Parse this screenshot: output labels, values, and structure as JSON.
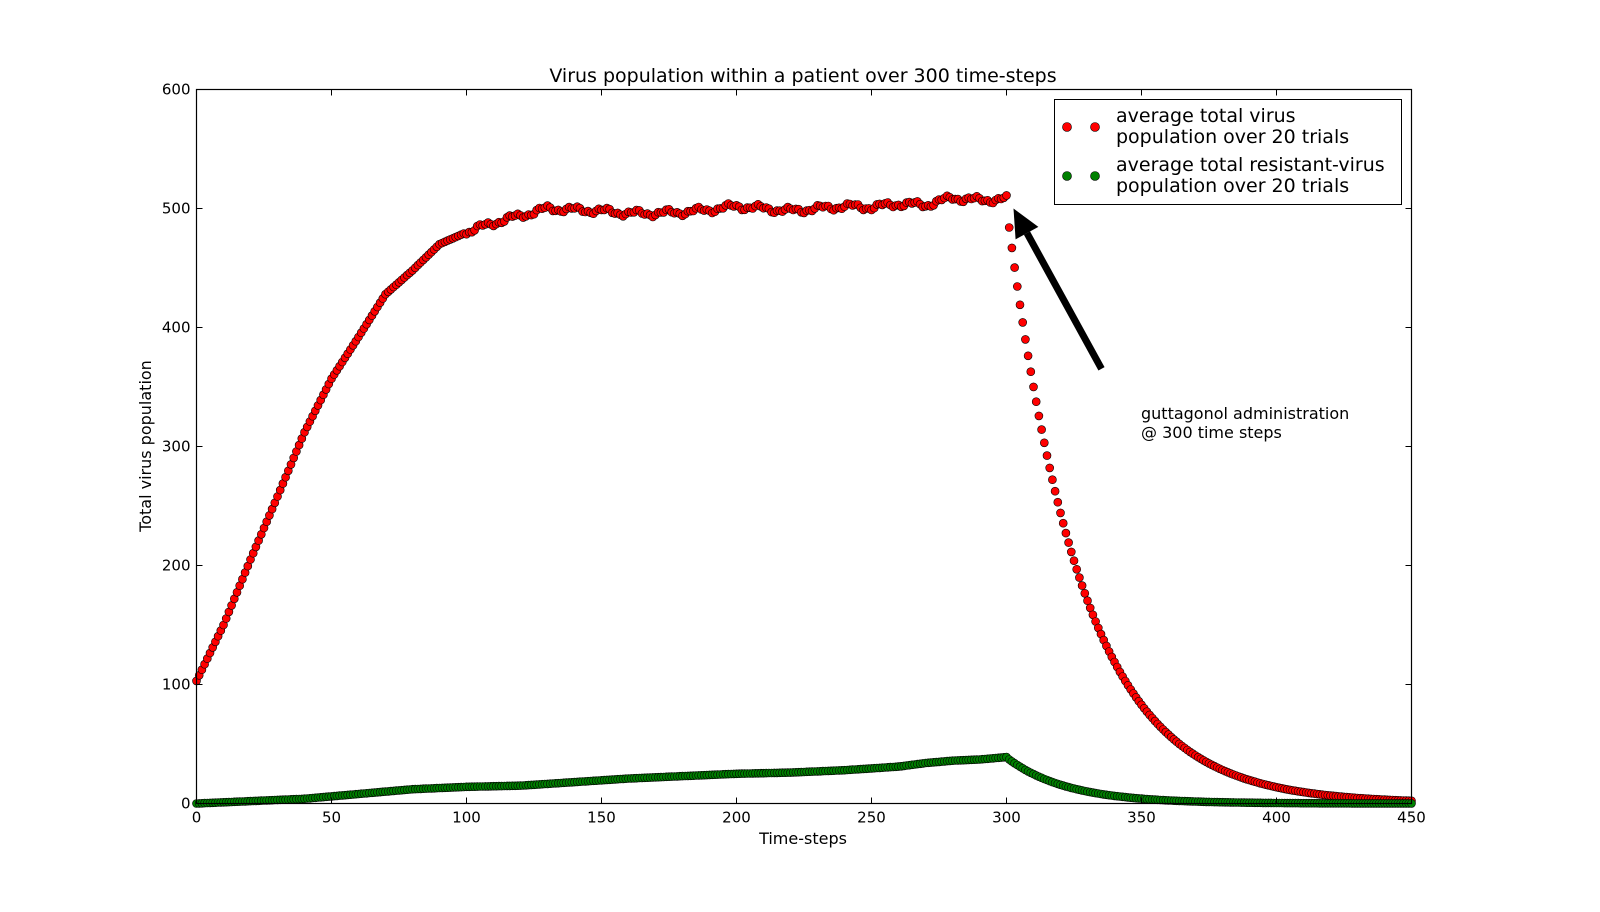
{
  "chart_data": {
    "type": "scatter",
    "title": "Virus population within a patient over 300 time-steps",
    "xlabel": "Time-steps",
    "ylabel": "Total virus population",
    "xlim": [
      0,
      450
    ],
    "ylim": [
      0,
      600
    ],
    "xticks": [
      0,
      50,
      100,
      150,
      200,
      250,
      300,
      350,
      400,
      450
    ],
    "yticks": [
      0,
      100,
      200,
      300,
      400,
      500,
      600
    ],
    "grid": false,
    "legend_placement": "top-right",
    "series": [
      {
        "name": "average total virus\npopulation over 20 trials",
        "color": "#ff0000",
        "anchors": [
          [
            0,
            103
          ],
          [
            10,
            150
          ],
          [
            20,
            205
          ],
          [
            30,
            258
          ],
          [
            40,
            312
          ],
          [
            50,
            357
          ],
          [
            60,
            392
          ],
          [
            70,
            428
          ],
          [
            80,
            448
          ],
          [
            90,
            470
          ],
          [
            100,
            480
          ],
          [
            110,
            488
          ],
          [
            120,
            494
          ],
          [
            130,
            500
          ],
          [
            140,
            499
          ],
          [
            150,
            498
          ],
          [
            160,
            496
          ],
          [
            170,
            496
          ],
          [
            180,
            497
          ],
          [
            190,
            499
          ],
          [
            200,
            502
          ],
          [
            210,
            500
          ],
          [
            220,
            498
          ],
          [
            230,
            500
          ],
          [
            240,
            502
          ],
          [
            250,
            501
          ],
          [
            260,
            504
          ],
          [
            270,
            503
          ],
          [
            280,
            509
          ],
          [
            290,
            507
          ],
          [
            300,
            508
          ]
        ],
        "decay": {
          "start_x": 301,
          "start_y": 484,
          "end_x": 450,
          "rate": 0.036
        }
      },
      {
        "name": "average total resistant-virus\npopulation over 20 trials",
        "color": "#008000",
        "anchors": [
          [
            0,
            0
          ],
          [
            20,
            2
          ],
          [
            40,
            4
          ],
          [
            60,
            8
          ],
          [
            80,
            12
          ],
          [
            100,
            14
          ],
          [
            120,
            15
          ],
          [
            140,
            18
          ],
          [
            160,
            21
          ],
          [
            180,
            23
          ],
          [
            200,
            25
          ],
          [
            220,
            26
          ],
          [
            240,
            28
          ],
          [
            260,
            31
          ],
          [
            270,
            34
          ],
          [
            280,
            36
          ],
          [
            290,
            37
          ],
          [
            300,
            39
          ]
        ],
        "decay": {
          "start_x": 301,
          "start_y": 37,
          "end_x": 450,
          "rate": 0.045
        }
      }
    ],
    "annotation": {
      "text_lines": [
        "guttagonol administration",
        "@ 300 time steps"
      ],
      "point": [
        300,
        505
      ],
      "text_anchor": [
        350,
        330
      ]
    }
  }
}
